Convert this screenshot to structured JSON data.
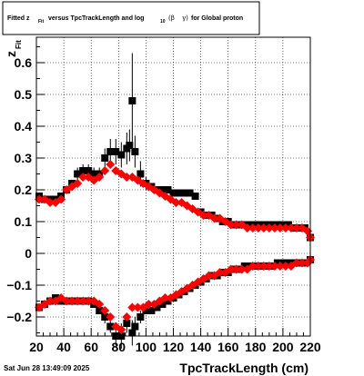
{
  "title": {
    "prefix": "Fitted  z",
    "prefix_sub": "Fit",
    "middle": "versus TpcTrackLength and log",
    "log_sub": "10",
    "beta": "(β",
    "gamma": "γ)",
    "suffix": "for Global proton"
  },
  "timestamp": "Sat Jun 28 13:49:09 2025",
  "chart_data": {
    "type": "scatter",
    "title": "Fitted z_Fit versus TpcTrackLength and log10(βγ) for Global proton",
    "xlabel": "TpcTrackLength (cm)",
    "ylabel_main": "z",
    "ylabel_sub": "Fit",
    "xlim": [
      20,
      220
    ],
    "ylim": [
      -0.26,
      0.68
    ],
    "grid": true,
    "x_ticks": [
      20,
      40,
      60,
      80,
      100,
      120,
      140,
      160,
      180,
      200,
      220
    ],
    "y_ticks": [
      -0.2,
      -0.1,
      0,
      0.1,
      0.2,
      0.3,
      0.4,
      0.5,
      0.6
    ],
    "y_tick_labels": [
      "−0.2",
      "−0.1",
      "0",
      "0.1",
      "0.2",
      "0.3",
      "0.4",
      "0.5",
      "0.6"
    ],
    "series": [
      {
        "color": "#000000",
        "marker": "square",
        "points": [
          [
            22,
            0.18,
            0.01
          ],
          [
            26,
            0.17,
            0.01
          ],
          [
            30,
            0.17,
            0.01
          ],
          [
            34,
            0.17,
            0.01
          ],
          [
            38,
            0.18,
            0.01
          ],
          [
            42,
            0.2,
            0.01
          ],
          [
            46,
            0.22,
            0.01
          ],
          [
            50,
            0.25,
            0.02
          ],
          [
            54,
            0.26,
            0.02
          ],
          [
            58,
            0.26,
            0.02
          ],
          [
            62,
            0.25,
            0.02
          ],
          [
            66,
            0.25,
            0.02
          ],
          [
            70,
            0.3,
            0.03
          ],
          [
            74,
            0.32,
            0.04
          ],
          [
            78,
            0.32,
            0.04
          ],
          [
            82,
            0.31,
            0.04
          ],
          [
            86,
            0.33,
            0.05
          ],
          [
            88,
            0.34,
            0.05
          ],
          [
            90,
            0.48,
            0.15
          ],
          [
            92,
            0.32,
            0.05
          ],
          [
            96,
            0.25,
            0.04
          ],
          [
            100,
            0.22,
            0.02
          ],
          [
            104,
            0.21,
            0.01
          ],
          [
            108,
            0.2,
            0.01
          ],
          [
            112,
            0.2,
            0.01
          ],
          [
            116,
            0.2,
            0.01
          ],
          [
            120,
            0.19,
            0.01
          ],
          [
            124,
            0.19,
            0.01
          ],
          [
            128,
            0.19,
            0.01
          ],
          [
            132,
            0.19,
            0.01
          ],
          [
            136,
            0.18,
            0.01
          ],
          [
            140,
            0.13,
            0.01
          ],
          [
            144,
            0.12,
            0.01
          ],
          [
            148,
            0.12,
            0.01
          ],
          [
            152,
            0.11,
            0.01
          ],
          [
            156,
            0.1,
            0.01
          ],
          [
            160,
            0.1,
            0.01
          ],
          [
            164,
            0.09,
            0.01
          ],
          [
            168,
            0.09,
            0.01
          ],
          [
            172,
            0.09,
            0.01
          ],
          [
            176,
            0.09,
            0.01
          ],
          [
            180,
            0.09,
            0.01
          ],
          [
            184,
            0.09,
            0.01
          ],
          [
            188,
            0.09,
            0.01
          ],
          [
            192,
            0.09,
            0.01
          ],
          [
            196,
            0.09,
            0.01
          ],
          [
            200,
            0.09,
            0.01
          ],
          [
            204,
            0.09,
            0.01
          ],
          [
            208,
            0.08,
            0.01
          ],
          [
            212,
            0.08,
            0.01
          ],
          [
            216,
            0.08,
            0.01
          ],
          [
            220,
            0.05,
            0.01
          ],
          [
            22,
            -0.17,
            0.01
          ],
          [
            26,
            -0.16,
            0.01
          ],
          [
            30,
            -0.15,
            0.01
          ],
          [
            34,
            -0.14,
            0.01
          ],
          [
            38,
            -0.15,
            0.01
          ],
          [
            42,
            -0.15,
            0.01
          ],
          [
            46,
            -0.15,
            0.01
          ],
          [
            50,
            -0.15,
            0.01
          ],
          [
            54,
            -0.15,
            0.01
          ],
          [
            58,
            -0.15,
            0.01
          ],
          [
            62,
            -0.16,
            0.01
          ],
          [
            66,
            -0.18,
            0.01
          ],
          [
            70,
            -0.2,
            0.02
          ],
          [
            74,
            -0.23,
            0.02
          ],
          [
            78,
            -0.26,
            0.03
          ],
          [
            82,
            -0.26,
            0.04
          ],
          [
            86,
            -0.22,
            0.03
          ],
          [
            90,
            -0.25,
            0.04
          ],
          [
            92,
            -0.23,
            0.03
          ],
          [
            96,
            -0.2,
            0.02
          ],
          [
            100,
            -0.18,
            0.01
          ],
          [
            104,
            -0.18,
            0.01
          ],
          [
            108,
            -0.17,
            0.01
          ],
          [
            112,
            -0.16,
            0.01
          ],
          [
            116,
            -0.15,
            0.01
          ],
          [
            120,
            -0.14,
            0.01
          ],
          [
            124,
            -0.13,
            0.01
          ],
          [
            128,
            -0.12,
            0.01
          ],
          [
            132,
            -0.11,
            0.01
          ],
          [
            136,
            -0.1,
            0.01
          ],
          [
            140,
            -0.09,
            0.01
          ],
          [
            144,
            -0.08,
            0.01
          ],
          [
            148,
            -0.07,
            0.01
          ],
          [
            152,
            -0.07,
            0.01
          ],
          [
            156,
            -0.06,
            0.01
          ],
          [
            160,
            -0.06,
            0.01
          ],
          [
            164,
            -0.05,
            0.01
          ],
          [
            168,
            -0.05,
            0.01
          ],
          [
            172,
            -0.04,
            0.01
          ],
          [
            176,
            -0.04,
            0.01
          ],
          [
            180,
            -0.04,
            0.01
          ],
          [
            184,
            -0.04,
            0.01
          ],
          [
            188,
            -0.04,
            0.01
          ],
          [
            192,
            -0.04,
            0.01
          ],
          [
            196,
            -0.03,
            0.01
          ],
          [
            200,
            -0.03,
            0.01
          ],
          [
            204,
            -0.03,
            0.01
          ],
          [
            208,
            -0.03,
            0.01
          ],
          [
            212,
            -0.03,
            0.01
          ],
          [
            216,
            -0.03,
            0.01
          ],
          [
            220,
            -0.02,
            0.01
          ]
        ]
      },
      {
        "color": "#ff0000",
        "marker": "diamond",
        "points": [
          [
            22,
            0.17,
            0.01
          ],
          [
            26,
            0.17,
            0.01
          ],
          [
            30,
            0.16,
            0.01
          ],
          [
            34,
            0.16,
            0.01
          ],
          [
            38,
            0.17,
            0.01
          ],
          [
            42,
            0.2,
            0.01
          ],
          [
            46,
            0.21,
            0.01
          ],
          [
            50,
            0.22,
            0.01
          ],
          [
            54,
            0.24,
            0.01
          ],
          [
            58,
            0.24,
            0.01
          ],
          [
            62,
            0.23,
            0.01
          ],
          [
            66,
            0.24,
            0.01
          ],
          [
            70,
            0.26,
            0.01
          ],
          [
            74,
            0.28,
            0.01
          ],
          [
            78,
            0.26,
            0.01
          ],
          [
            82,
            0.25,
            0.01
          ],
          [
            86,
            0.24,
            0.01
          ],
          [
            90,
            0.24,
            0.01
          ],
          [
            94,
            0.23,
            0.01
          ],
          [
            98,
            0.22,
            0.01
          ],
          [
            102,
            0.21,
            0.01
          ],
          [
            106,
            0.2,
            0.01
          ],
          [
            110,
            0.19,
            0.01
          ],
          [
            114,
            0.18,
            0.01
          ],
          [
            118,
            0.17,
            0.01
          ],
          [
            122,
            0.16,
            0.01
          ],
          [
            126,
            0.16,
            0.01
          ],
          [
            130,
            0.15,
            0.01
          ],
          [
            134,
            0.14,
            0.01
          ],
          [
            138,
            0.13,
            0.01
          ],
          [
            142,
            0.12,
            0.01
          ],
          [
            146,
            0.12,
            0.01
          ],
          [
            150,
            0.11,
            0.01
          ],
          [
            154,
            0.11,
            0.01
          ],
          [
            158,
            0.1,
            0.01
          ],
          [
            162,
            0.09,
            0.01
          ],
          [
            166,
            0.09,
            0.01
          ],
          [
            170,
            0.09,
            0.01
          ],
          [
            174,
            0.08,
            0.01
          ],
          [
            178,
            0.08,
            0.01
          ],
          [
            182,
            0.08,
            0.01
          ],
          [
            186,
            0.08,
            0.01
          ],
          [
            190,
            0.08,
            0.01
          ],
          [
            194,
            0.08,
            0.01
          ],
          [
            198,
            0.08,
            0.01
          ],
          [
            202,
            0.08,
            0.01
          ],
          [
            206,
            0.08,
            0.01
          ],
          [
            210,
            0.08,
            0.01
          ],
          [
            214,
            0.08,
            0.01
          ],
          [
            218,
            0.07,
            0.01
          ],
          [
            220,
            0.05,
            0.01
          ],
          [
            22,
            -0.17,
            0.01
          ],
          [
            26,
            -0.16,
            0.01
          ],
          [
            30,
            -0.15,
            0.01
          ],
          [
            34,
            -0.15,
            0.01
          ],
          [
            38,
            -0.14,
            0.01
          ],
          [
            42,
            -0.15,
            0.01
          ],
          [
            46,
            -0.15,
            0.01
          ],
          [
            50,
            -0.15,
            0.01
          ],
          [
            54,
            -0.15,
            0.01
          ],
          [
            58,
            -0.15,
            0.01
          ],
          [
            62,
            -0.15,
            0.01
          ],
          [
            66,
            -0.16,
            0.01
          ],
          [
            70,
            -0.18,
            0.01
          ],
          [
            74,
            -0.2,
            0.01
          ],
          [
            78,
            -0.23,
            0.01
          ],
          [
            82,
            -0.24,
            0.01
          ],
          [
            86,
            -0.2,
            0.01
          ],
          [
            90,
            -0.17,
            0.01
          ],
          [
            94,
            -0.17,
            0.01
          ],
          [
            98,
            -0.17,
            0.01
          ],
          [
            102,
            -0.16,
            0.01
          ],
          [
            106,
            -0.16,
            0.01
          ],
          [
            110,
            -0.15,
            0.01
          ],
          [
            114,
            -0.14,
            0.01
          ],
          [
            118,
            -0.14,
            0.01
          ],
          [
            122,
            -0.13,
            0.01
          ],
          [
            126,
            -0.12,
            0.01
          ],
          [
            130,
            -0.11,
            0.01
          ],
          [
            134,
            -0.1,
            0.01
          ],
          [
            138,
            -0.09,
            0.01
          ],
          [
            142,
            -0.08,
            0.01
          ],
          [
            146,
            -0.07,
            0.01
          ],
          [
            150,
            -0.07,
            0.01
          ],
          [
            154,
            -0.06,
            0.01
          ],
          [
            158,
            -0.06,
            0.01
          ],
          [
            162,
            -0.05,
            0.01
          ],
          [
            166,
            -0.05,
            0.01
          ],
          [
            170,
            -0.05,
            0.01
          ],
          [
            174,
            -0.05,
            0.01
          ],
          [
            178,
            -0.04,
            0.01
          ],
          [
            182,
            -0.04,
            0.01
          ],
          [
            186,
            -0.04,
            0.01
          ],
          [
            190,
            -0.04,
            0.01
          ],
          [
            194,
            -0.04,
            0.01
          ],
          [
            198,
            -0.04,
            0.01
          ],
          [
            202,
            -0.04,
            0.01
          ],
          [
            206,
            -0.04,
            0.01
          ],
          [
            210,
            -0.03,
            0.01
          ],
          [
            214,
            -0.03,
            0.01
          ],
          [
            218,
            -0.03,
            0.01
          ],
          [
            220,
            -0.02,
            0.01
          ]
        ]
      }
    ]
  }
}
